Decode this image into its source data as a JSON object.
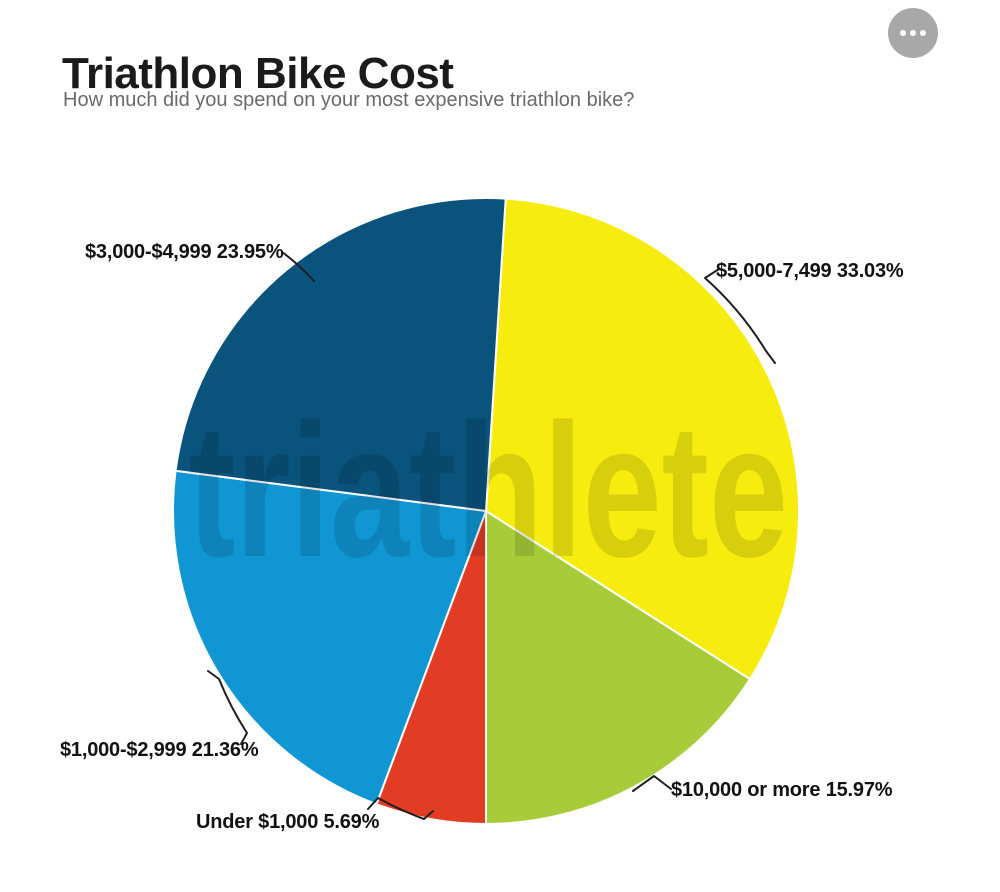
{
  "page": {
    "title": "Triathlon Bike Cost",
    "subtitle": "How much did you spend on your most expensive triathlon bike?"
  },
  "menu": {
    "icon": "ellipsis"
  },
  "chart_data": {
    "type": "pie",
    "title": "Triathlon Bike Cost",
    "subtitle": "How much did you spend on your most expensive triathlon bike?",
    "slices": [
      {
        "label": "$5,000-7,499",
        "value": 33.03,
        "pct_label": "33.03%",
        "color": "#F6EC0E"
      },
      {
        "label": "$10,000 or more",
        "value": 15.97,
        "pct_label": "15.97%",
        "color": "#A8CC39"
      },
      {
        "label": "Under $1,000",
        "value": 5.69,
        "pct_label": "5.69%",
        "color": "#E23C25"
      },
      {
        "label": "$1,000-$2,999",
        "value": 21.36,
        "pct_label": "21.36%",
        "color": "#1096D3"
      },
      {
        "label": "$3,000-$4,999",
        "value": 23.95,
        "pct_label": "23.95%",
        "color": "#0A537D"
      }
    ],
    "direction": "clockwise",
    "start_angle_deg": 3.6,
    "center": [
      486,
      511
    ],
    "radius": 313,
    "legend": "none",
    "label_style": "outside-with-leader-lines",
    "watermark": "triathlete",
    "background_color": "#ffffff",
    "label_color": "#121212",
    "leader_line_color": "#1f1f1f"
  }
}
